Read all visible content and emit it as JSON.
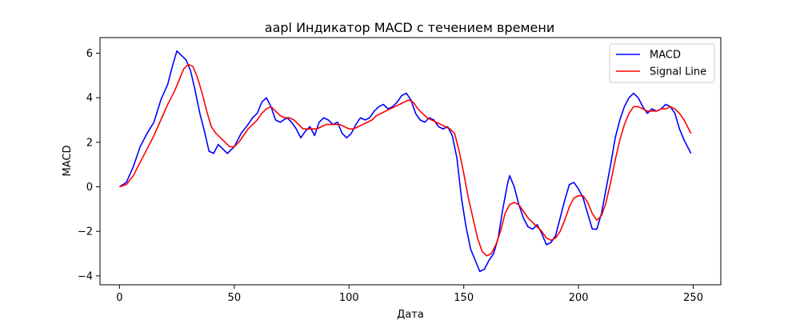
{
  "chart_data": {
    "type": "line",
    "title": "aapl Индикатор MACD с течением времени",
    "xlabel": "Дата",
    "ylabel": "MACD",
    "xlim": [
      -8.5,
      262
    ],
    "ylim": [
      -4.4,
      6.7
    ],
    "xticks": [
      0,
      50,
      100,
      150,
      200,
      250
    ],
    "yticks": [
      -4,
      -2,
      0,
      2,
      4,
      6
    ],
    "grid": false,
    "legend_position": "top-right",
    "series": [
      {
        "name": "MACD",
        "color": "#0000ff",
        "points": [
          [
            0,
            0
          ],
          [
            3,
            0.2
          ],
          [
            6,
            0.9
          ],
          [
            9,
            1.8
          ],
          [
            12,
            2.4
          ],
          [
            15,
            2.9
          ],
          [
            18,
            3.9
          ],
          [
            21,
            4.6
          ],
          [
            23,
            5.4
          ],
          [
            25,
            6.1
          ],
          [
            27,
            5.9
          ],
          [
            29,
            5.7
          ],
          [
            31,
            5.2
          ],
          [
            33,
            4.3
          ],
          [
            35,
            3.3
          ],
          [
            37,
            2.5
          ],
          [
            39,
            1.6
          ],
          [
            41,
            1.5
          ],
          [
            43,
            1.9
          ],
          [
            45,
            1.7
          ],
          [
            47,
            1.5
          ],
          [
            50,
            1.8
          ],
          [
            53,
            2.4
          ],
          [
            56,
            2.8
          ],
          [
            58,
            3.1
          ],
          [
            60,
            3.3
          ],
          [
            62,
            3.8
          ],
          [
            64,
            4.0
          ],
          [
            66,
            3.6
          ],
          [
            68,
            3.0
          ],
          [
            70,
            2.9
          ],
          [
            73,
            3.1
          ],
          [
            75,
            2.9
          ],
          [
            77,
            2.6
          ],
          [
            79,
            2.2
          ],
          [
            81,
            2.5
          ],
          [
            83,
            2.7
          ],
          [
            85,
            2.3
          ],
          [
            87,
            2.9
          ],
          [
            89,
            3.1
          ],
          [
            91,
            3.0
          ],
          [
            93,
            2.8
          ],
          [
            95,
            2.9
          ],
          [
            97,
            2.4
          ],
          [
            99,
            2.2
          ],
          [
            101,
            2.4
          ],
          [
            103,
            2.8
          ],
          [
            105,
            3.1
          ],
          [
            107,
            3.0
          ],
          [
            109,
            3.1
          ],
          [
            111,
            3.4
          ],
          [
            113,
            3.6
          ],
          [
            115,
            3.7
          ],
          [
            117,
            3.5
          ],
          [
            119,
            3.6
          ],
          [
            121,
            3.8
          ],
          [
            123,
            4.1
          ],
          [
            125,
            4.2
          ],
          [
            127,
            3.9
          ],
          [
            129,
            3.3
          ],
          [
            131,
            3.0
          ],
          [
            133,
            2.9
          ],
          [
            135,
            3.1
          ],
          [
            137,
            3.0
          ],
          [
            139,
            2.7
          ],
          [
            141,
            2.6
          ],
          [
            143,
            2.7
          ],
          [
            145,
            2.3
          ],
          [
            147,
            1.3
          ],
          [
            149,
            -0.5
          ],
          [
            151,
            -1.8
          ],
          [
            153,
            -2.8
          ],
          [
            155,
            -3.3
          ],
          [
            157,
            -3.8
          ],
          [
            159,
            -3.7
          ],
          [
            161,
            -3.3
          ],
          [
            163,
            -3.0
          ],
          [
            165,
            -2.3
          ],
          [
            167,
            -1.0
          ],
          [
            169,
            0.1
          ],
          [
            170,
            0.5
          ],
          [
            172,
            0.0
          ],
          [
            174,
            -0.8
          ],
          [
            176,
            -1.4
          ],
          [
            178,
            -1.8
          ],
          [
            180,
            -1.9
          ],
          [
            182,
            -1.7
          ],
          [
            184,
            -2.1
          ],
          [
            186,
            -2.6
          ],
          [
            188,
            -2.5
          ],
          [
            190,
            -2.2
          ],
          [
            192,
            -1.4
          ],
          [
            194,
            -0.6
          ],
          [
            196,
            0.1
          ],
          [
            198,
            0.2
          ],
          [
            200,
            -0.1
          ],
          [
            202,
            -0.5
          ],
          [
            204,
            -1.2
          ],
          [
            206,
            -1.9
          ],
          [
            208,
            -1.9
          ],
          [
            210,
            -1.2
          ],
          [
            212,
            -0.1
          ],
          [
            214,
            1.0
          ],
          [
            216,
            2.2
          ],
          [
            218,
            3.0
          ],
          [
            220,
            3.6
          ],
          [
            222,
            4.0
          ],
          [
            224,
            4.2
          ],
          [
            226,
            4.0
          ],
          [
            228,
            3.6
          ],
          [
            230,
            3.3
          ],
          [
            232,
            3.5
          ],
          [
            234,
            3.4
          ],
          [
            236,
            3.5
          ],
          [
            238,
            3.7
          ],
          [
            240,
            3.6
          ],
          [
            242,
            3.3
          ],
          [
            244,
            2.6
          ],
          [
            246,
            2.1
          ],
          [
            249,
            1.5
          ]
        ]
      },
      {
        "name": "Signal Line",
        "color": "#ff0000",
        "points": [
          [
            0,
            0
          ],
          [
            3,
            0.1
          ],
          [
            6,
            0.5
          ],
          [
            9,
            1.1
          ],
          [
            12,
            1.7
          ],
          [
            15,
            2.3
          ],
          [
            18,
            3.0
          ],
          [
            21,
            3.7
          ],
          [
            24,
            4.3
          ],
          [
            26,
            4.8
          ],
          [
            28,
            5.3
          ],
          [
            30,
            5.5
          ],
          [
            32,
            5.4
          ],
          [
            34,
            4.9
          ],
          [
            36,
            4.2
          ],
          [
            38,
            3.4
          ],
          [
            40,
            2.7
          ],
          [
            42,
            2.4
          ],
          [
            44,
            2.2
          ],
          [
            46,
            2.0
          ],
          [
            48,
            1.8
          ],
          [
            50,
            1.8
          ],
          [
            52,
            2.0
          ],
          [
            54,
            2.3
          ],
          [
            56,
            2.6
          ],
          [
            58,
            2.8
          ],
          [
            60,
            3.0
          ],
          [
            62,
            3.3
          ],
          [
            64,
            3.5
          ],
          [
            66,
            3.6
          ],
          [
            68,
            3.4
          ],
          [
            70,
            3.2
          ],
          [
            72,
            3.1
          ],
          [
            74,
            3.1
          ],
          [
            76,
            3.0
          ],
          [
            78,
            2.8
          ],
          [
            80,
            2.6
          ],
          [
            82,
            2.6
          ],
          [
            84,
            2.6
          ],
          [
            86,
            2.6
          ],
          [
            88,
            2.7
          ],
          [
            90,
            2.8
          ],
          [
            92,
            2.8
          ],
          [
            94,
            2.8
          ],
          [
            96,
            2.8
          ],
          [
            98,
            2.7
          ],
          [
            100,
            2.6
          ],
          [
            102,
            2.6
          ],
          [
            104,
            2.7
          ],
          [
            106,
            2.8
          ],
          [
            108,
            2.9
          ],
          [
            110,
            3.0
          ],
          [
            112,
            3.2
          ],
          [
            114,
            3.3
          ],
          [
            116,
            3.4
          ],
          [
            118,
            3.5
          ],
          [
            120,
            3.6
          ],
          [
            122,
            3.7
          ],
          [
            124,
            3.8
          ],
          [
            126,
            3.9
          ],
          [
            128,
            3.8
          ],
          [
            130,
            3.5
          ],
          [
            132,
            3.3
          ],
          [
            134,
            3.1
          ],
          [
            136,
            3.0
          ],
          [
            138,
            2.9
          ],
          [
            140,
            2.8
          ],
          [
            142,
            2.7
          ],
          [
            144,
            2.6
          ],
          [
            146,
            2.4
          ],
          [
            148,
            1.6
          ],
          [
            150,
            0.6
          ],
          [
            152,
            -0.5
          ],
          [
            154,
            -1.4
          ],
          [
            156,
            -2.3
          ],
          [
            158,
            -2.9
          ],
          [
            160,
            -3.1
          ],
          [
            162,
            -3.0
          ],
          [
            164,
            -2.6
          ],
          [
            166,
            -2.0
          ],
          [
            168,
            -1.2
          ],
          [
            170,
            -0.8
          ],
          [
            172,
            -0.7
          ],
          [
            174,
            -0.8
          ],
          [
            176,
            -1.1
          ],
          [
            178,
            -1.4
          ],
          [
            180,
            -1.6
          ],
          [
            182,
            -1.8
          ],
          [
            184,
            -2.0
          ],
          [
            186,
            -2.3
          ],
          [
            188,
            -2.4
          ],
          [
            190,
            -2.3
          ],
          [
            192,
            -2.0
          ],
          [
            194,
            -1.5
          ],
          [
            196,
            -0.9
          ],
          [
            198,
            -0.5
          ],
          [
            200,
            -0.4
          ],
          [
            202,
            -0.4
          ],
          [
            204,
            -0.7
          ],
          [
            206,
            -1.2
          ],
          [
            208,
            -1.5
          ],
          [
            210,
            -1.3
          ],
          [
            212,
            -0.7
          ],
          [
            214,
            0.2
          ],
          [
            216,
            1.2
          ],
          [
            218,
            2.1
          ],
          [
            220,
            2.8
          ],
          [
            222,
            3.3
          ],
          [
            224,
            3.6
          ],
          [
            226,
            3.6
          ],
          [
            228,
            3.5
          ],
          [
            230,
            3.4
          ],
          [
            232,
            3.4
          ],
          [
            234,
            3.4
          ],
          [
            236,
            3.5
          ],
          [
            238,
            3.5
          ],
          [
            240,
            3.6
          ],
          [
            242,
            3.5
          ],
          [
            244,
            3.3
          ],
          [
            246,
            3.0
          ],
          [
            249,
            2.4
          ]
        ]
      }
    ]
  }
}
